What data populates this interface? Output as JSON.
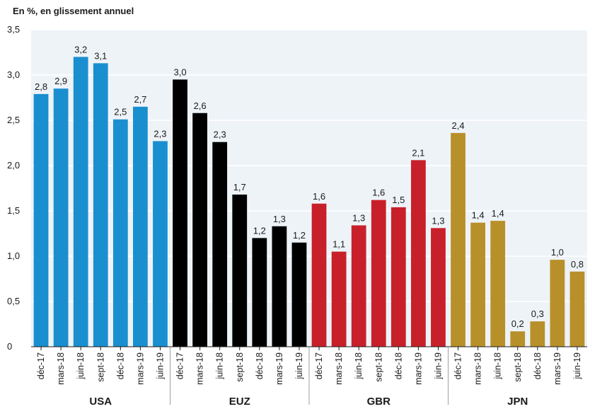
{
  "chart_data": {
    "type": "bar",
    "title": "",
    "subtitle": "En %, en glissement annuel",
    "xlabel": "",
    "ylabel": "",
    "ylim": [
      0,
      3.5
    ],
    "yticks": [
      "0",
      "0,5",
      "1,0",
      "1,5",
      "2,0",
      "2,5",
      "3,0",
      "3,5"
    ],
    "grid": true,
    "legend": "none",
    "categories": [
      "déc-17",
      "mars-18",
      "juin-18",
      "sept-18",
      "déc-18",
      "mars-19",
      "juin-19"
    ],
    "groups": [
      {
        "name": "USA",
        "color": "#1a8fd0",
        "values": [
          2.79,
          2.85,
          3.2,
          3.13,
          2.51,
          2.65,
          2.27
        ],
        "labels": [
          "2,8",
          "2,9",
          "3,2",
          "3,1",
          "2,5",
          "2,7",
          "2,3"
        ]
      },
      {
        "name": "EUZ",
        "color": "#000000",
        "values": [
          2.95,
          2.58,
          2.26,
          1.68,
          1.2,
          1.33,
          1.15
        ],
        "labels": [
          "3,0",
          "2,6",
          "2,3",
          "1,7",
          "1,2",
          "1,3",
          "1,2"
        ]
      },
      {
        "name": "GBR",
        "color": "#c8202a",
        "values": [
          1.58,
          1.05,
          1.34,
          1.62,
          1.54,
          2.06,
          1.31
        ],
        "labels": [
          "1,6",
          "1,1",
          "1,3",
          "1,6",
          "1,5",
          "2,1",
          "1,3"
        ]
      },
      {
        "name": "JPN",
        "color": "#b8902a",
        "values": [
          2.36,
          1.37,
          1.39,
          0.17,
          0.28,
          0.96,
          0.83
        ],
        "labels": [
          "2,4",
          "1,4",
          "1,4",
          "0,2",
          "0,3",
          "1,0",
          "0,8"
        ]
      }
    ]
  }
}
